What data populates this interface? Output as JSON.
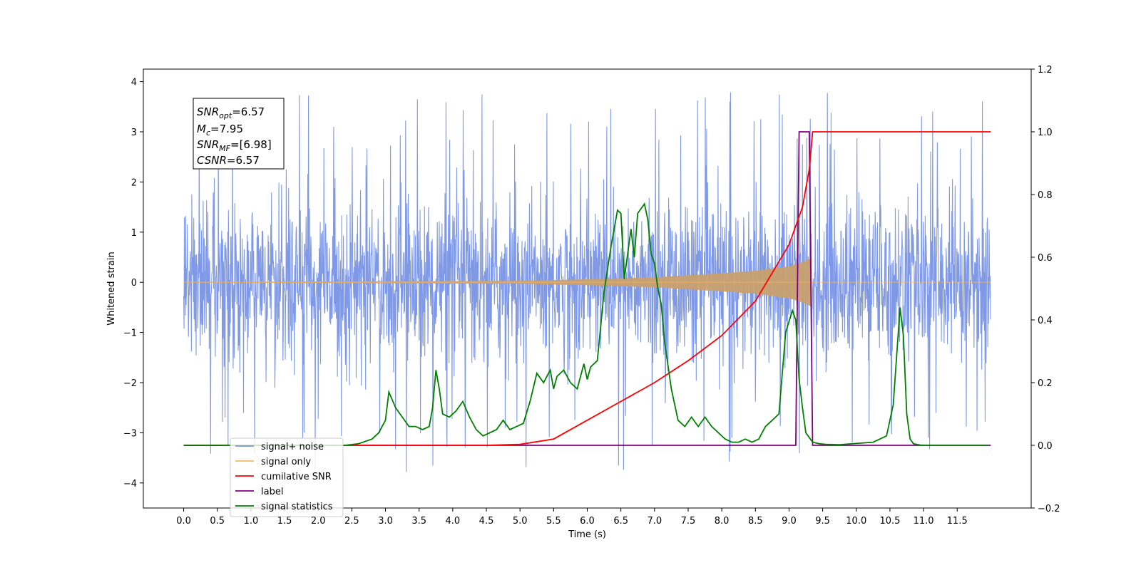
{
  "chart_data": {
    "type": "line",
    "title": "",
    "xlabel": "Time (s)",
    "ylabel": "Whitened strain",
    "xlim": [
      -0.6,
      12.6
    ],
    "ylim": [
      -4.5,
      4.25
    ],
    "y2lim": [
      -0.2,
      1.2
    ],
    "xticks": [
      "0.0",
      "0.5",
      "1.0",
      "1.5",
      "2.0",
      "2.5",
      "3.0",
      "3.5",
      "4.0",
      "4.5",
      "5.0",
      "5.5",
      "6.0",
      "6.5",
      "7.0",
      "7.5",
      "8.0",
      "8.5",
      "9.0",
      "9.5",
      "10.0",
      "10.5",
      "11.0",
      "11.5"
    ],
    "yticks_left": [
      "4",
      "3",
      "2",
      "1",
      "0",
      "−1",
      "−2",
      "−3",
      "−4"
    ],
    "yticks_right": [
      "1.2",
      "1.0",
      "0.8",
      "0.6",
      "0.4",
      "0.2",
      "0.0",
      "−0.2"
    ],
    "grid": false,
    "legend_position": "lower-left",
    "annotations": {
      "snr_opt": "=6.57",
      "mc": "=7.95",
      "snr_mf": "=[6.98]",
      "csnr": "=6.57"
    },
    "series": [
      {
        "name": "signal+ noise",
        "axis": "left",
        "color": "#7893e6",
        "description": "noisy whitened strain spanning 0 to 12 s, roughly within ±2.5 with spikes up to about ±3.9"
      },
      {
        "name": "signal only",
        "axis": "left",
        "color": "#f5b764",
        "chirp_envelope": {
          "x": [
            0,
            5,
            6,
            7,
            8,
            8.5,
            9,
            9.2,
            9.3,
            9.34
          ],
          "y": [
            0.005,
            0.03,
            0.06,
            0.1,
            0.18,
            0.23,
            0.32,
            0.4,
            0.46,
            0.5
          ]
        }
      },
      {
        "name": "cumilative SNR",
        "axis": "right",
        "color": "#ff0000",
        "x": [
          0,
          4.5,
          5.0,
          5.5,
          6.0,
          6.5,
          7.0,
          7.5,
          8.0,
          8.5,
          9.0,
          9.2,
          9.3,
          9.35,
          12
        ],
        "y": [
          0,
          0,
          0.003,
          0.02,
          0.08,
          0.14,
          0.2,
          0.27,
          0.35,
          0.46,
          0.64,
          0.76,
          0.88,
          1.0,
          1.0
        ]
      },
      {
        "name": "label",
        "axis": "right",
        "color": "#800080",
        "x": [
          0,
          9.1,
          9.15,
          9.3,
          9.35,
          12
        ],
        "y": [
          0,
          0,
          1.0,
          1.0,
          0,
          0
        ]
      },
      {
        "name": "signal statistics",
        "axis": "right",
        "color": "#008000",
        "x": [
          0,
          2.4,
          2.6,
          2.8,
          2.9,
          3.0,
          3.05,
          3.15,
          3.25,
          3.35,
          3.45,
          3.55,
          3.65,
          3.7,
          3.75,
          3.8,
          3.85,
          3.95,
          4.05,
          4.15,
          4.25,
          4.35,
          4.45,
          4.55,
          4.65,
          4.75,
          4.85,
          4.95,
          5.05,
          5.15,
          5.25,
          5.35,
          5.45,
          5.5,
          5.55,
          5.65,
          5.75,
          5.85,
          5.95,
          6.0,
          6.05,
          6.15,
          6.25,
          6.35,
          6.45,
          6.5,
          6.55,
          6.65,
          6.7,
          6.75,
          6.85,
          6.9,
          6.95,
          7.0,
          7.05,
          7.1,
          7.15,
          7.25,
          7.35,
          7.45,
          7.55,
          7.65,
          7.75,
          7.85,
          7.95,
          8.05,
          8.15,
          8.25,
          8.35,
          8.45,
          8.55,
          8.65,
          8.75,
          8.85,
          8.95,
          9.05,
          9.1,
          9.15,
          9.2,
          9.25,
          9.35,
          9.45,
          9.55,
          9.75,
          10.25,
          10.35,
          10.45,
          10.55,
          10.65,
          10.7,
          10.75,
          10.8,
          10.85,
          10.95,
          11.05,
          11.15,
          11.5,
          11.95
        ],
        "y": [
          0,
          0,
          0.005,
          0.02,
          0.04,
          0.08,
          0.17,
          0.12,
          0.09,
          0.06,
          0.06,
          0.05,
          0.06,
          0.12,
          0.24,
          0.18,
          0.1,
          0.09,
          0.11,
          0.14,
          0.09,
          0.05,
          0.03,
          0.04,
          0.05,
          0.08,
          0.05,
          0.06,
          0.07,
          0.14,
          0.23,
          0.2,
          0.24,
          0.18,
          0.22,
          0.24,
          0.2,
          0.18,
          0.26,
          0.21,
          0.25,
          0.27,
          0.49,
          0.63,
          0.75,
          0.74,
          0.53,
          0.69,
          0.6,
          0.74,
          0.77,
          0.72,
          0.61,
          0.58,
          0.5,
          0.45,
          0.33,
          0.18,
          0.08,
          0.06,
          0.09,
          0.06,
          0.09,
          0.06,
          0.04,
          0.02,
          0.01,
          0.01,
          0.02,
          0.01,
          0.02,
          0.06,
          0.08,
          0.1,
          0.36,
          0.43,
          0.4,
          0.21,
          0.12,
          0.04,
          0.01,
          0.005,
          0.003,
          0.002,
          0.01,
          0.02,
          0.03,
          0.13,
          0.44,
          0.35,
          0.1,
          0.02,
          0.005,
          0.001,
          0,
          0,
          0,
          0
        ]
      }
    ],
    "legend": [
      {
        "label": "signal+ noise",
        "color": "#7893e6"
      },
      {
        "label": "signal only",
        "color": "#f5b764"
      },
      {
        "label": "cumilative SNR",
        "color": "#ff0000"
      },
      {
        "label": "label",
        "color": "#800080"
      },
      {
        "label": "signal statistics",
        "color": "#008000"
      }
    ]
  }
}
